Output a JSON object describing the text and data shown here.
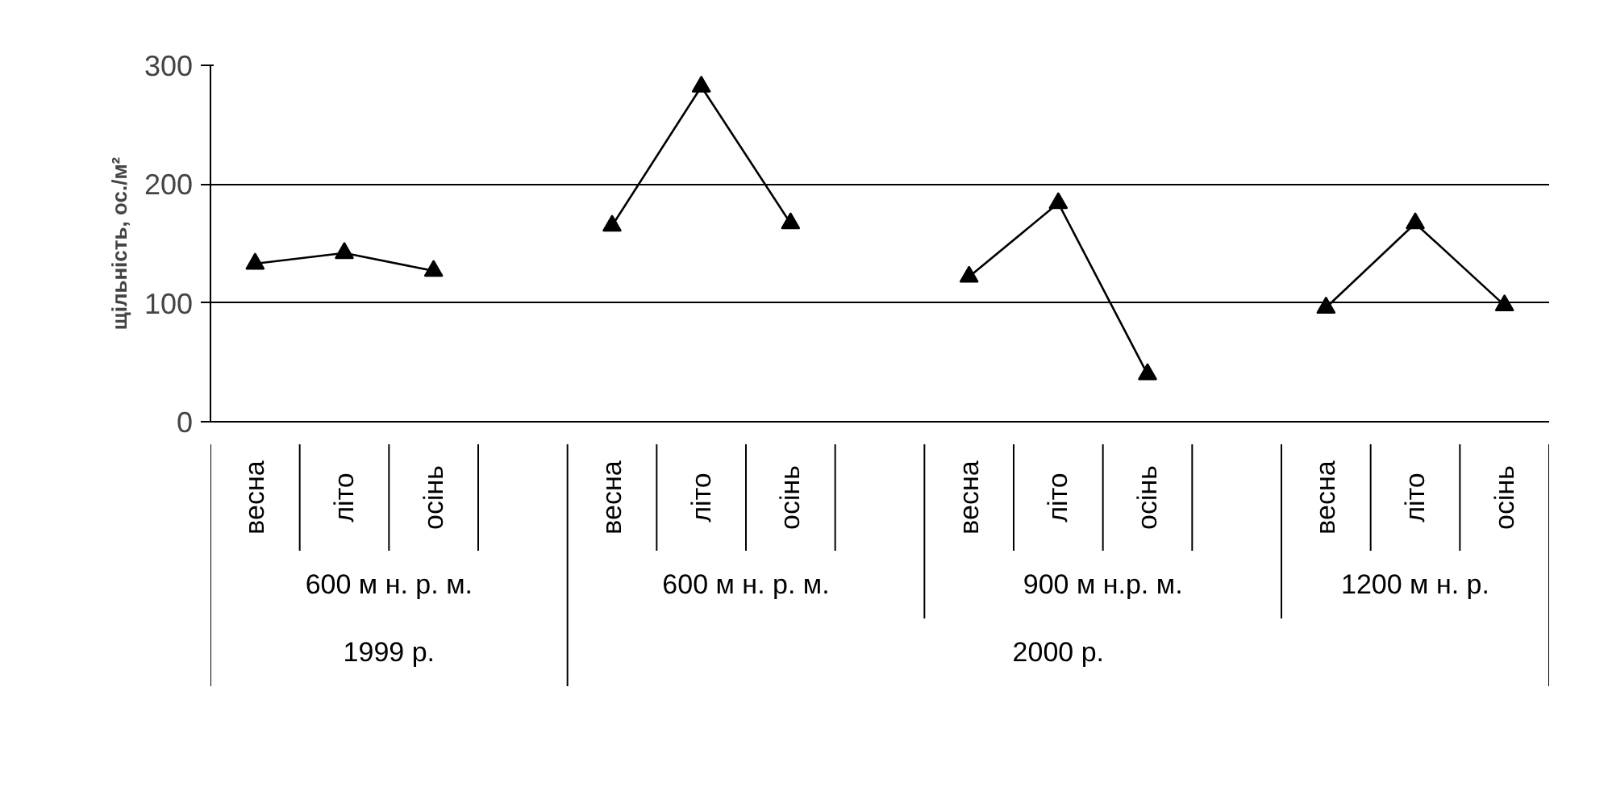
{
  "chart_data": {
    "type": "line",
    "ylabel": "щільність, ос./м²",
    "categories": [
      "весна",
      "літо",
      "осінь",
      null,
      "весна",
      "літо",
      "осінь",
      null,
      "весна",
      "літо",
      "осінь",
      null,
      "весна",
      "літо",
      "осінь"
    ],
    "series": [
      {
        "color": "#000000",
        "values": [
          133,
          142,
          127,
          null,
          165,
          282,
          167,
          null,
          122,
          184,
          40,
          null,
          96,
          167,
          98
        ]
      }
    ],
    "annotations": [
      "600 м н. р. м.",
      "600 м н. р. м.",
      "900 м н.р. м.",
      "1200 м н. р.",
      "1999 р.",
      "2000 р."
    ],
    "ylim": [
      0,
      300
    ],
    "yticks": [
      0,
      100,
      200,
      300
    ],
    "grid": "y",
    "marker": "triangle",
    "line_style": "solid"
  }
}
